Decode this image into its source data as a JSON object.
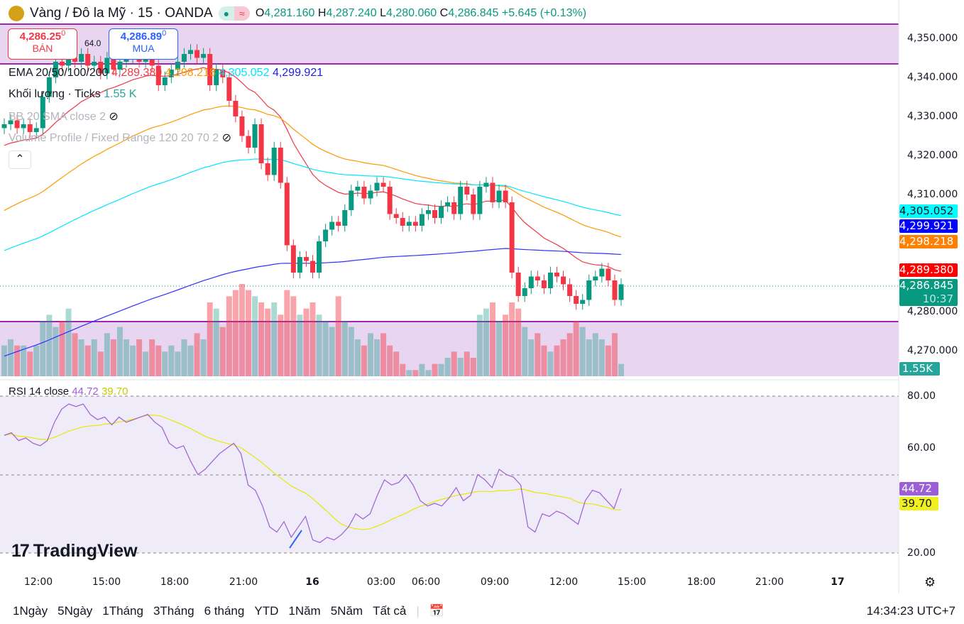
{
  "header": {
    "title": "Vàng / Đô la Mỹ · 15 · OANDA",
    "market_status": "●",
    "market_flag": "≈",
    "open_label": "O",
    "open": "4,281.160",
    "high_label": "H",
    "high": "4,287.240",
    "low_label": "L",
    "low": "4,280.060",
    "close_label": "C",
    "close": "4,286.845",
    "change": "+5.645 (+0.13%)"
  },
  "trade": {
    "sell_price": "4,286.25",
    "sell_sup": "0",
    "sell_label": "BÁN",
    "spread": "64.0",
    "buy_price": "4,286.89",
    "buy_sup": "0",
    "buy_label": "MUA"
  },
  "indicators": {
    "ema_label": "EMA 20/50/100/200",
    "ema20": "4,289.380",
    "ema50": "4,298.218",
    "ema100": "4,305.052",
    "ema200": "4,299.921",
    "volume_label": "Khối lượng · Ticks",
    "volume_value": "1.55 K",
    "bb_label": "BB 20 SMA close 2",
    "vp_label": "Volume Profile / Fixed Range 120 20 70 2",
    "rsi_label": "RSI 14 close",
    "rsi_value": "44.72",
    "rsi_ma": "39.70"
  },
  "price_axis": {
    "ticks": [
      "4,350.000",
      "4,340.000",
      "4,330.000",
      "4,320.000",
      "4,310.000",
      "4,280.000",
      "4,270.000"
    ],
    "labels": {
      "ema100": "4,305.052",
      "ema200": "4,299.921",
      "ema50": "4,298.218",
      "ema20": "4,289.380",
      "last": "4,286.845",
      "countdown": "10:37",
      "volume": "1.55K"
    }
  },
  "rsi_axis": {
    "ticks": [
      "80.00",
      "60.00",
      "20.00"
    ],
    "rsi": "44.72",
    "ma": "39.70"
  },
  "time_axis": [
    "12:00",
    "15:00",
    "18:00",
    "21:00",
    "16",
    "03:00",
    "06:00",
    "09:00",
    "12:00",
    "15:00",
    "18:00",
    "21:00",
    "17"
  ],
  "bottom": {
    "ranges": [
      "1Ngày",
      "5Ngày",
      "1Tháng",
      "3Tháng",
      "6 tháng",
      "YTD",
      "1Năm",
      "5Năm",
      "Tất cả"
    ],
    "clock": "14:34:23 UTC+7"
  },
  "brand": "TradingView",
  "colors": {
    "up": "#089981",
    "down": "#f23645",
    "ema20": "#f23645",
    "ema50": "#ff9800",
    "ema100": "#00e5ff",
    "ema200": "#3030ff",
    "rsi": "#9c5fd6",
    "rsi_ma": "#e8e800",
    "zone": "#e8d5ef"
  },
  "chart_data": {
    "type": "candlestick",
    "title": "Vàng / Đô la Mỹ · 15 · OANDA",
    "ylim": [
      4264,
      4352
    ],
    "closes": [
      4328,
      4329,
      4327,
      4328,
      4326,
      4327,
      4335,
      4340,
      4344,
      4343,
      4345,
      4344,
      4346,
      4343,
      4344,
      4341,
      4345,
      4342,
      4344,
      4345,
      4346,
      4344,
      4345,
      4343,
      4338,
      4340,
      4342,
      4344,
      4346,
      4347,
      4345,
      4346,
      4338,
      4342,
      4340,
      4334,
      4330,
      4325,
      4322,
      4328,
      4318,
      4315,
      4322,
      4313,
      4297,
      4290,
      4294,
      4293,
      4290,
      4298,
      4301,
      4303,
      4302,
      4306,
      4311,
      4312,
      4309,
      4311,
      4313,
      4312,
      4305,
      4304,
      4302,
      4303,
      4302,
      4305,
      4306,
      4304,
      4307,
      4308,
      4305,
      4312,
      4310,
      4305,
      4312,
      4313,
      4308,
      4311,
      4308,
      4290,
      4284,
      4286,
      4289,
      4288,
      4286,
      4290,
      4289,
      4287,
      4284,
      4282,
      4283,
      4288,
      4289,
      4291,
      4288,
      4283,
      4287
    ],
    "volumes": [
      5,
      6,
      5,
      5,
      4,
      5,
      9,
      10,
      8,
      9,
      11,
      7,
      6,
      5,
      6,
      4,
      7,
      6,
      8,
      6,
      5,
      6,
      4,
      6,
      5,
      4,
      5,
      4,
      6,
      5,
      7,
      6,
      12,
      11,
      8,
      13,
      14,
      15,
      14,
      13,
      12,
      11,
      12,
      10,
      14,
      13,
      10,
      11,
      12,
      10,
      9,
      8,
      13,
      9,
      8,
      6,
      5,
      7,
      6,
      7,
      5,
      4,
      2,
      1,
      1,
      2,
      1,
      2,
      2,
      3,
      4,
      3,
      4,
      3,
      10,
      11,
      12,
      9,
      10,
      12,
      11,
      8,
      6,
      7,
      5,
      4,
      5,
      6,
      7,
      9,
      8,
      6,
      7,
      6,
      5,
      7,
      2
    ],
    "rsi": [
      65,
      66,
      63,
      64,
      62,
      61,
      63,
      70,
      75,
      77,
      76,
      77,
      73,
      71,
      72,
      69,
      72,
      70,
      71,
      72,
      73,
      70,
      68,
      62,
      60,
      61,
      55,
      50,
      52,
      55,
      58,
      60,
      62,
      58,
      46,
      44,
      38,
      30,
      28,
      32,
      26,
      30,
      34,
      25,
      24,
      26,
      25,
      27,
      30,
      35,
      33,
      35,
      42,
      48,
      46,
      47,
      50,
      46,
      40,
      38,
      39,
      38,
      41,
      45,
      40,
      42,
      50,
      48,
      45,
      52,
      50,
      49,
      46,
      30,
      28,
      35,
      34,
      36,
      35,
      33,
      31,
      40,
      44,
      43,
      40,
      37,
      44.72
    ],
    "rsi_range": [
      20,
      80
    ]
  }
}
